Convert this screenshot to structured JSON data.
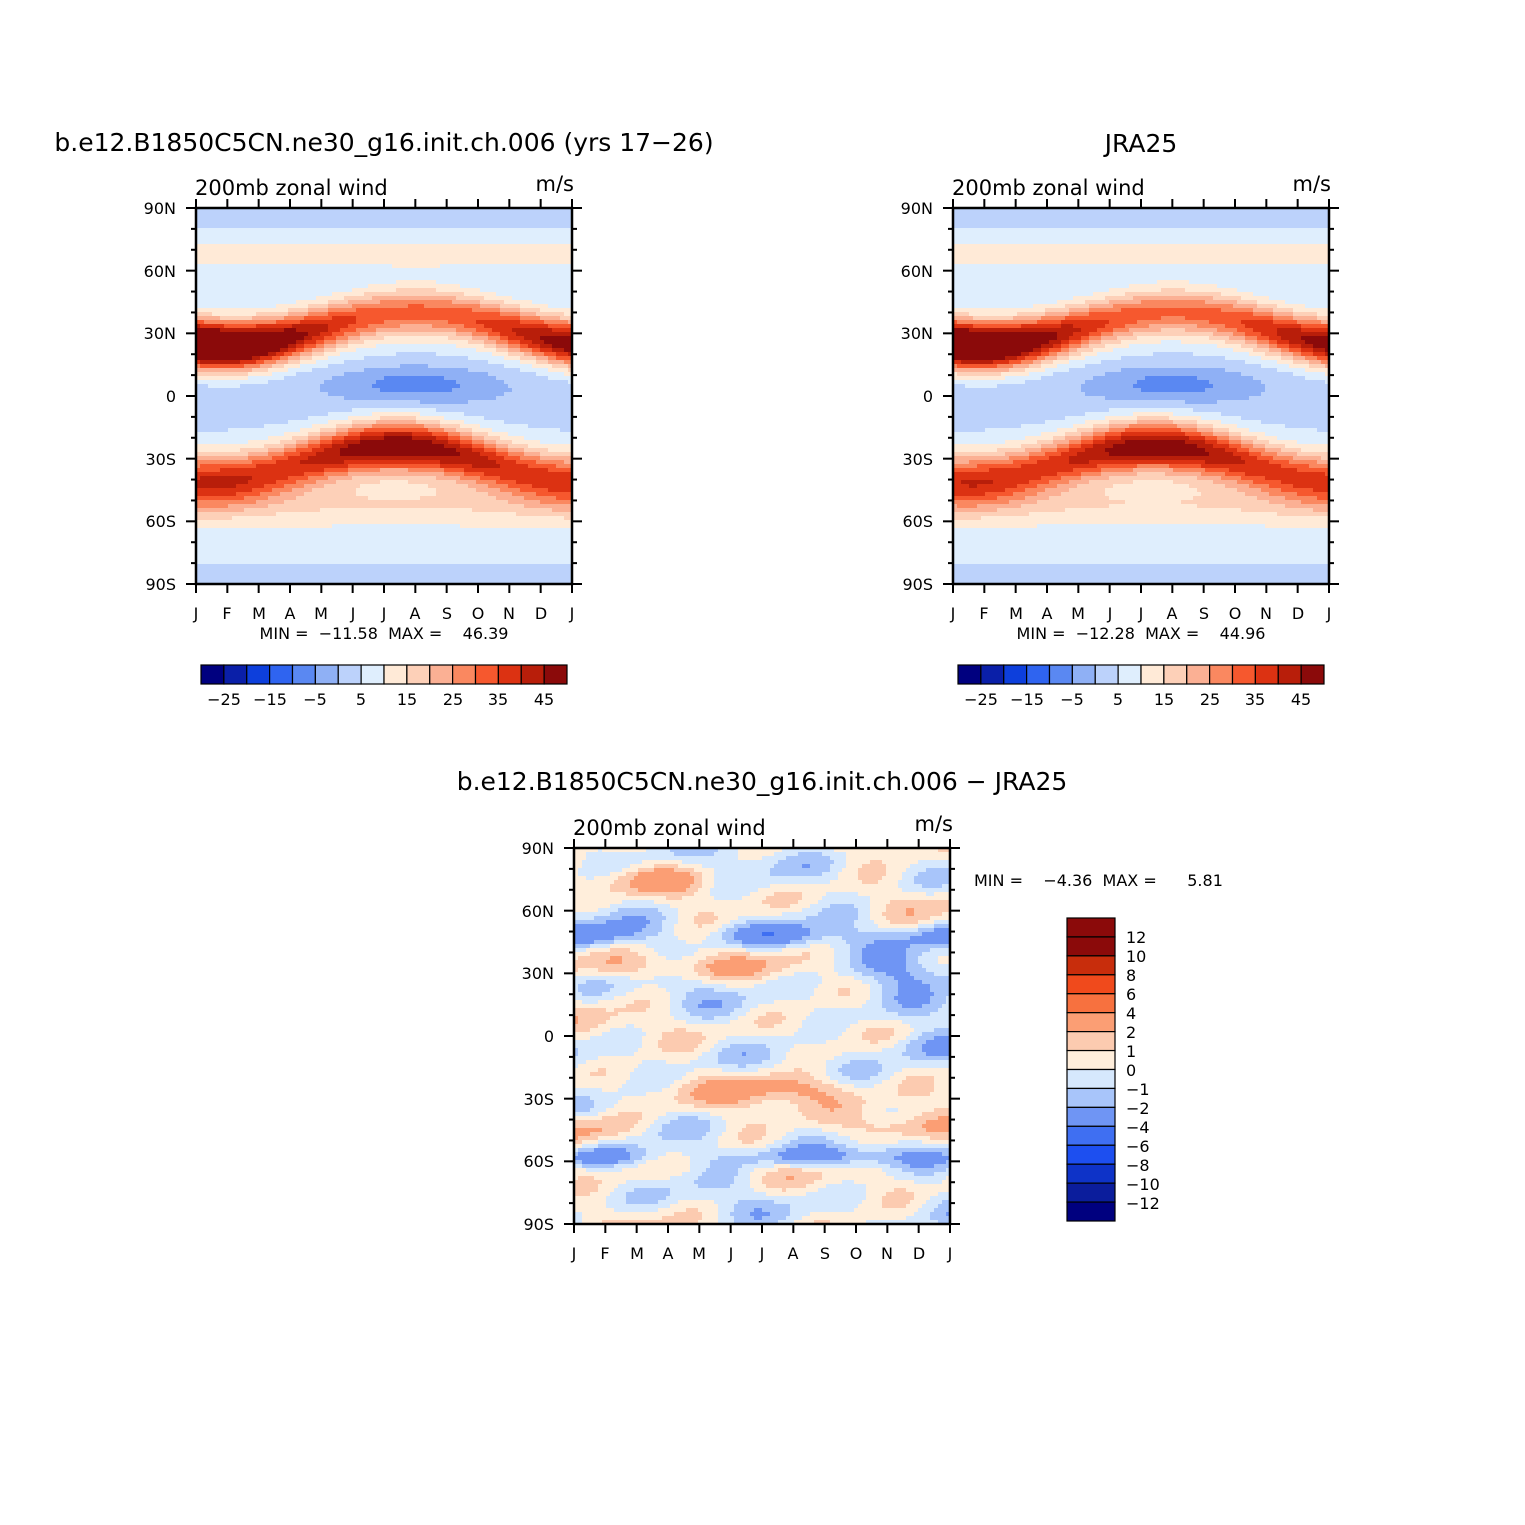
{
  "colors": {
    "full": [
      "#00007f",
      "#0a1fa8",
      "#0d3fdc",
      "#2f64f0",
      "#5a88f2",
      "#8fb0f5",
      "#bcd2fb",
      "#dfeefd",
      "#ffead7",
      "#fdd0b8",
      "#fbb094",
      "#fa8860",
      "#f6582e",
      "#dc3212",
      "#b81e0a",
      "#8b0a0a"
    ],
    "diff": [
      "#00007f",
      "#0b1d9c",
      "#0e33c8",
      "#1d4ff0",
      "#3f6ff2",
      "#6f95f4",
      "#a8c5fa",
      "#d6e8fd",
      "#ffeedb",
      "#fccbb0",
      "#fb9e74",
      "#f7713f",
      "#f04a1c",
      "#c82d0c",
      "#8b0a0a"
    ]
  },
  "chart_data": [
    {
      "type": "heatmap",
      "title": "b.e12.B1850C5CN.ne30_g16.init.ch.006 (yrs 17−26)",
      "subtitle_left": "200mb  zonal wind",
      "subtitle_right": "m/s",
      "x_tick_labels": [
        "J",
        "F",
        "M",
        "A",
        "M",
        "J",
        "J",
        "A",
        "S",
        "O",
        "N",
        "D",
        "J"
      ],
      "y_tick_labels": [
        "90N",
        "60N",
        "30N",
        "0",
        "30S",
        "60S",
        "90S"
      ],
      "ylim": [
        -90,
        90
      ],
      "stats": "MIN =  −11.58  MAX =    46.39",
      "stats_min": -11.58,
      "stats_max": 46.39,
      "colorbar_labels": [
        "−25",
        "−15",
        "−5",
        "5",
        "15",
        "25",
        "35",
        "45"
      ],
      "contour_levels": [
        -30,
        -25,
        -20,
        -15,
        -10,
        -5,
        0,
        5,
        10,
        15,
        20,
        25,
        30,
        35,
        40,
        45
      ]
    },
    {
      "type": "heatmap",
      "title": "JRA25",
      "subtitle_left": "200mb  zonal wind",
      "subtitle_right": "m/s",
      "x_tick_labels": [
        "J",
        "F",
        "M",
        "A",
        "M",
        "J",
        "J",
        "A",
        "S",
        "O",
        "N",
        "D",
        "J"
      ],
      "y_tick_labels": [
        "90N",
        "60N",
        "30N",
        "0",
        "30S",
        "60S",
        "90S"
      ],
      "ylim": [
        -90,
        90
      ],
      "stats": "MIN =  −12.28  MAX =    44.96",
      "stats_min": -12.28,
      "stats_max": 44.96,
      "colorbar_labels": [
        "−25",
        "−15",
        "−5",
        "5",
        "15",
        "25",
        "35",
        "45"
      ],
      "contour_levels": [
        -30,
        -25,
        -20,
        -15,
        -10,
        -5,
        0,
        5,
        10,
        15,
        20,
        25,
        30,
        35,
        40,
        45
      ]
    },
    {
      "type": "heatmap",
      "title": "b.e12.B1850C5CN.ne30_g16.init.ch.006 − JRA25",
      "subtitle_left": "200mb  zonal wind",
      "subtitle_right": "m/s",
      "x_tick_labels": [
        "J",
        "F",
        "M",
        "A",
        "M",
        "J",
        "J",
        "A",
        "S",
        "O",
        "N",
        "D",
        "J"
      ],
      "y_tick_labels": [
        "90N",
        "60N",
        "30N",
        "0",
        "30S",
        "60S",
        "90S"
      ],
      "ylim": [
        -90,
        90
      ],
      "stats": "MIN =    −4.36  MAX =      5.81",
      "stats_min": -4.36,
      "stats_max": 5.81,
      "colorbar_labels": [
        "12",
        "10",
        "8",
        "6",
        "4",
        "2",
        "1",
        "0",
        "−1",
        "−2",
        "−4",
        "−6",
        "−8",
        "−10",
        "−12"
      ],
      "contour_levels": [
        -12,
        -10,
        -8,
        -6,
        -4,
        -2,
        -1,
        0,
        1,
        2,
        4,
        6,
        8,
        10,
        12
      ]
    }
  ]
}
